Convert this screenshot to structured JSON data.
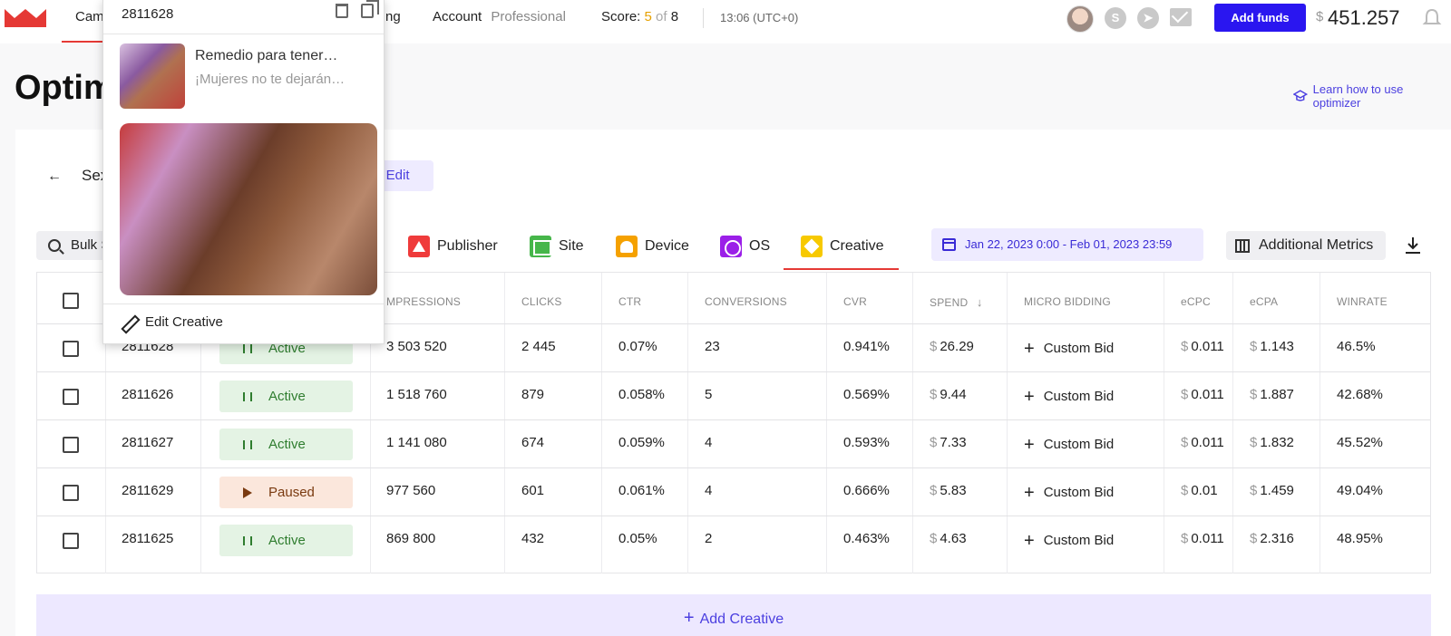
{
  "topbar": {
    "nav": {
      "campaigns": "Cam",
      "billing_tail": "ng",
      "account_label": "Account",
      "account_type": "Professional"
    },
    "score": {
      "label": "Score:",
      "current": "5",
      "of": "of",
      "total": "8"
    },
    "time": "13:06 (UTC+0)",
    "add_funds": "Add funds",
    "balance_currency": "$",
    "balance": "451.257",
    "icons": [
      "skype-icon",
      "telegram-icon",
      "mail-icon",
      "bell-icon"
    ]
  },
  "page": {
    "title": "Optim",
    "learn_link": "Learn how to use optimizer"
  },
  "campaign": {
    "back": "←",
    "name": "Sex",
    "bulk_edit": "k Edit"
  },
  "filters": {
    "bulk_search": "Bulk S",
    "tabs": [
      {
        "label": "Publisher",
        "icon": "publisher-icon"
      },
      {
        "label": "Site",
        "icon": "site-icon"
      },
      {
        "label": "Device",
        "icon": "device-icon"
      },
      {
        "label": "OS",
        "icon": "os-icon"
      },
      {
        "label": "Creative",
        "icon": "creative-icon"
      }
    ],
    "active_tab": "Creative",
    "date_range": "Jan 22, 2023 0:00 - Feb 01, 2023 23:59",
    "additional_metrics": "Additional Metrics"
  },
  "table": {
    "headers": [
      "MPRESSIONS",
      "CLICKS",
      "CTR",
      "CONVERSIONS",
      "CVR",
      "SPEND",
      "MICRO BIDDING",
      "eCPC",
      "eCPA",
      "WINRATE"
    ],
    "currency": "$",
    "rows": [
      {
        "id": "2811628",
        "status": "Active",
        "impressions": "3 503 520",
        "clicks": "2 445",
        "ctr": "0.07%",
        "conversions": "23",
        "cvr": "0.941%",
        "spend": "26.29",
        "bid": "Custom Bid",
        "ecpc": "0.011",
        "ecpa": "1.143",
        "winrate": "46.5%"
      },
      {
        "id": "2811626",
        "status": "Active",
        "impressions": "1 518 760",
        "clicks": "879",
        "ctr": "0.058%",
        "conversions": "5",
        "cvr": "0.569%",
        "spend": "9.44",
        "bid": "Custom Bid",
        "ecpc": "0.011",
        "ecpa": "1.887",
        "winrate": "42.68%"
      },
      {
        "id": "2811627",
        "status": "Active",
        "impressions": "1 141 080",
        "clicks": "674",
        "ctr": "0.059%",
        "conversions": "4",
        "cvr": "0.593%",
        "spend": "7.33",
        "bid": "Custom Bid",
        "ecpc": "0.011",
        "ecpa": "1.832",
        "winrate": "45.52%"
      },
      {
        "id": "2811629",
        "status": "Paused",
        "impressions": "977 560",
        "clicks": "601",
        "ctr": "0.061%",
        "conversions": "4",
        "cvr": "0.666%",
        "spend": "5.83",
        "bid": "Custom Bid",
        "ecpc": "0.01",
        "ecpa": "1.459",
        "winrate": "49.04%"
      },
      {
        "id": "2811625",
        "status": "Active",
        "impressions": "869 800",
        "clicks": "432",
        "ctr": "0.05%",
        "conversions": "2",
        "cvr": "0.463%",
        "spend": "4.63",
        "bid": "Custom Bid",
        "ecpc": "0.011",
        "ecpa": "2.316",
        "winrate": "48.95%"
      }
    ]
  },
  "add_creative": "Add Creative",
  "popup": {
    "id": "2811628",
    "title": "Remedio para tener…",
    "description": "¡Mujeres no te dejarán…",
    "edit": "Edit Creative"
  },
  "colors": {
    "accent": "#2a16f0",
    "active_tab_underline": "#e53935",
    "active_status_bg": "#e4f3e4",
    "paused_status_bg": "#fbe7dc"
  }
}
